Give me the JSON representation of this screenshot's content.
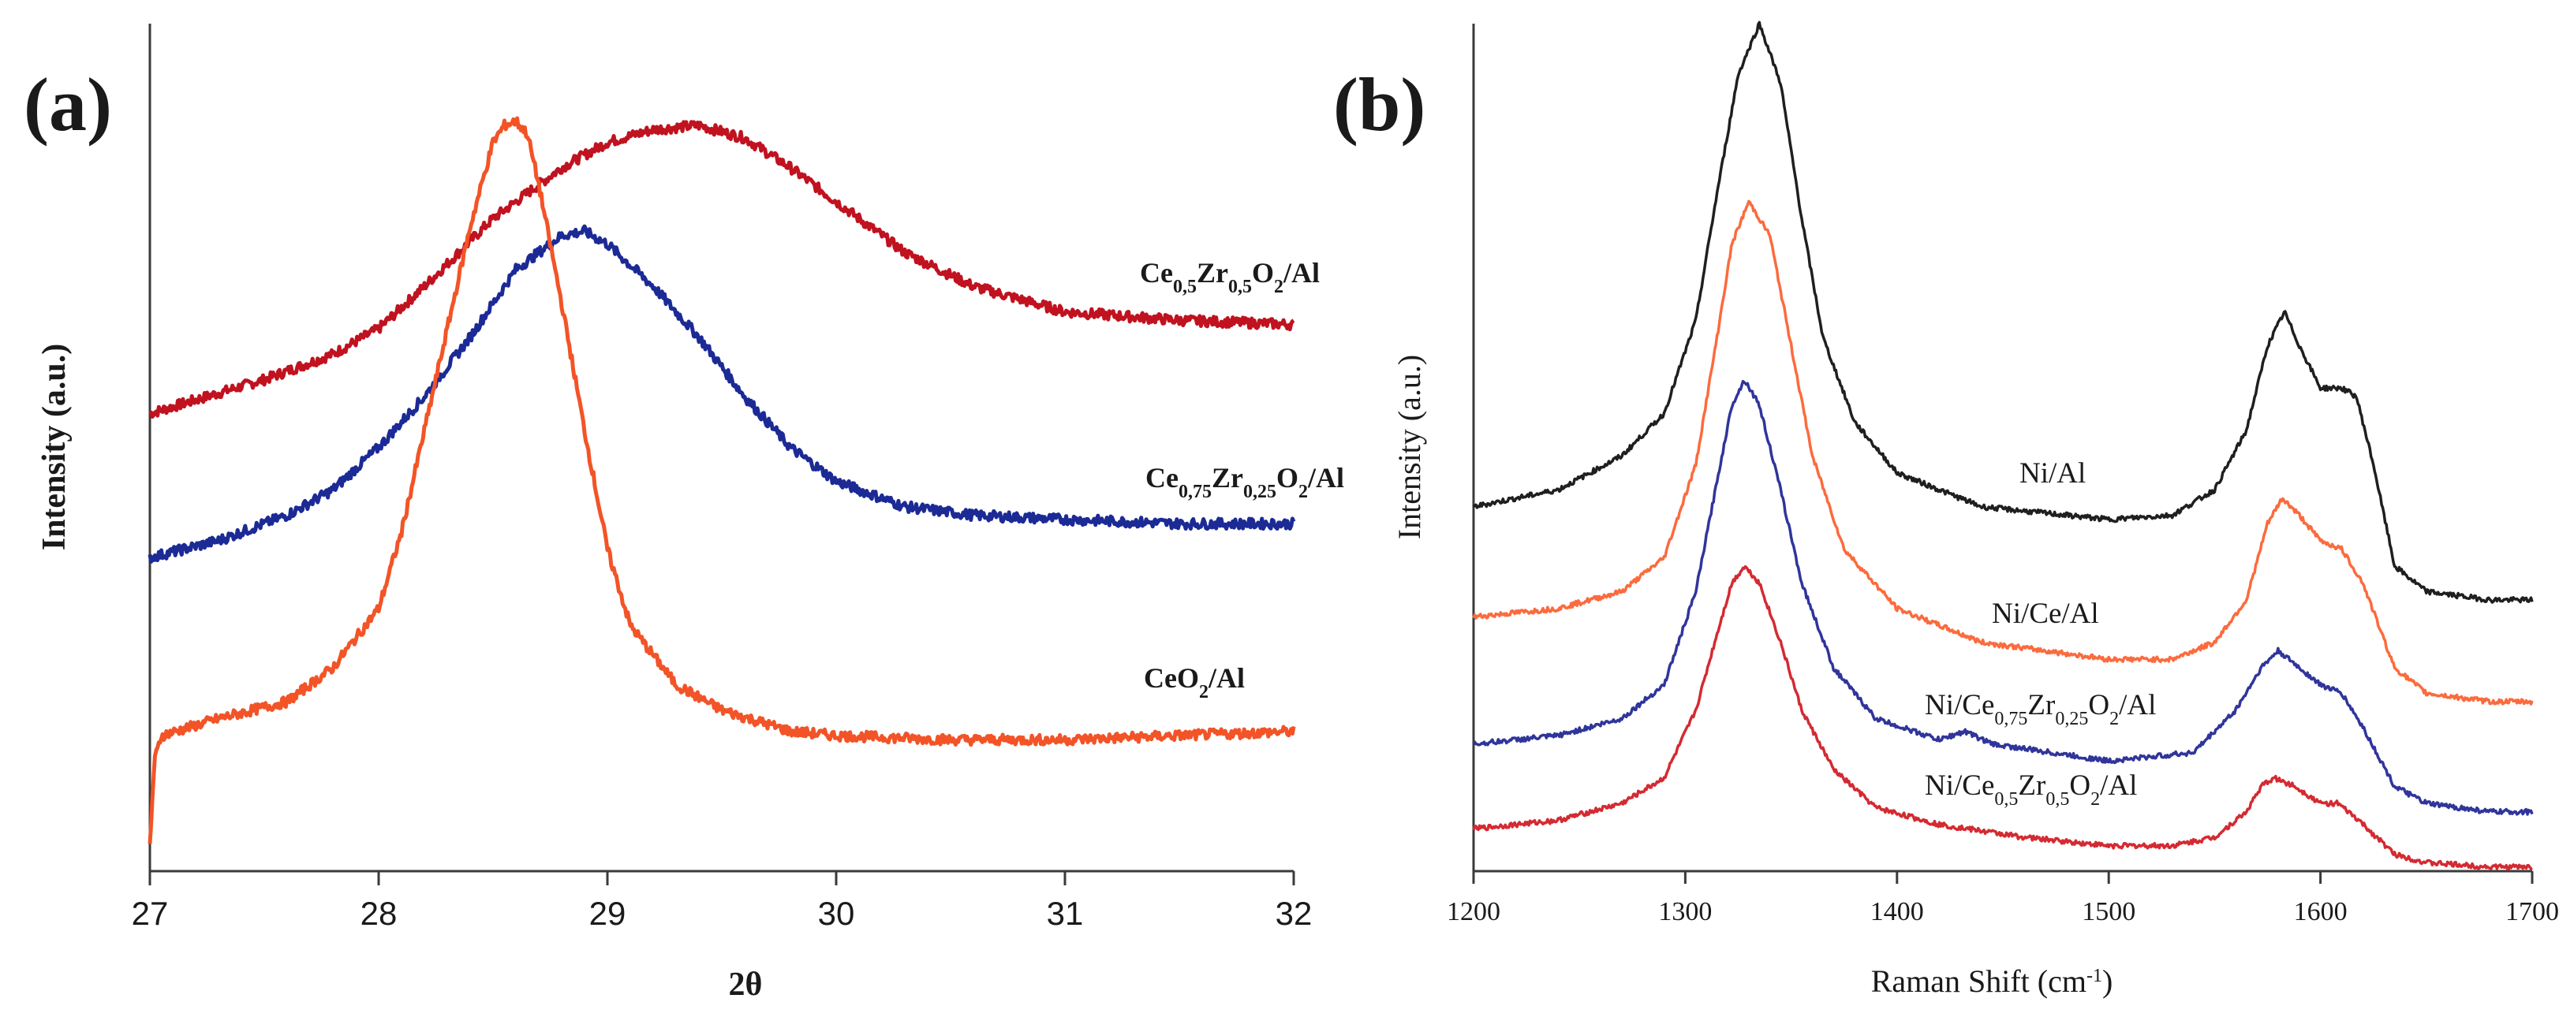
{
  "figure": {
    "panel_a_letter": "(a)",
    "panel_b_letter": "(b)"
  },
  "chart_data": [
    {
      "type": "line",
      "panel": "(a)",
      "title": "",
      "xlabel": "2θ",
      "ylabel": "Intensity (a.u.)",
      "xlim": [
        27,
        32
      ],
      "ylim": [
        0,
        1
      ],
      "xticks": [
        27,
        28,
        29,
        30,
        31,
        32
      ],
      "yticks": [],
      "grid": false,
      "legend": "inline labels at right",
      "series": [
        {
          "name": "Ce0,5Zr0,5O2/Al",
          "color": "#c0121f",
          "label": {
            "base": "Ce",
            "s1": "0,5",
            "m1": "Zr",
            "s2": "0,5",
            "m2": "O",
            "s3": "2",
            "tail": "/Al"
          },
          "x": [
            27.0,
            27.5,
            27.8,
            28.0,
            28.2,
            28.5,
            28.8,
            29.0,
            29.2,
            29.4,
            29.6,
            29.8,
            30.0,
            30.3,
            30.6,
            31.0,
            31.5,
            32.0
          ],
          "y": [
            0.54,
            0.58,
            0.61,
            0.64,
            0.69,
            0.77,
            0.83,
            0.86,
            0.875,
            0.88,
            0.865,
            0.83,
            0.79,
            0.73,
            0.69,
            0.66,
            0.65,
            0.645
          ]
        },
        {
          "name": "Ce0,75Zr0,25O2/Al",
          "color": "#1c2a96",
          "label": {
            "base": "Ce",
            "s1": "0,75",
            "m1": "Zr",
            "s2": "0,25",
            "m2": "O",
            "s3": "2",
            "tail": "/Al"
          },
          "x": [
            27.0,
            27.3,
            27.6,
            27.8,
            28.0,
            28.2,
            28.4,
            28.6,
            28.8,
            28.9,
            29.0,
            29.2,
            29.4,
            29.6,
            29.8,
            30.0,
            30.3,
            30.6,
            31.0,
            31.5,
            32.0
          ],
          "y": [
            0.37,
            0.39,
            0.42,
            0.45,
            0.5,
            0.56,
            0.63,
            0.71,
            0.75,
            0.755,
            0.74,
            0.69,
            0.63,
            0.56,
            0.5,
            0.46,
            0.43,
            0.42,
            0.415,
            0.41,
            0.41
          ]
        },
        {
          "name": "CeO2/Al",
          "color": "#f25427",
          "label": {
            "base": "CeO",
            "s1": "2",
            "tail": "/Al"
          },
          "x": [
            27.0,
            27.02,
            27.05,
            27.3,
            27.6,
            27.8,
            28.0,
            28.1,
            28.2,
            28.3,
            28.4,
            28.5,
            28.55,
            28.6,
            28.65,
            28.7,
            28.8,
            28.9,
            29.0,
            29.1,
            29.3,
            29.5,
            29.8,
            30.0,
            30.5,
            31.0,
            31.5,
            32.0
          ],
          "y": [
            0.03,
            0.13,
            0.16,
            0.18,
            0.2,
            0.24,
            0.31,
            0.4,
            0.52,
            0.64,
            0.76,
            0.86,
            0.88,
            0.885,
            0.87,
            0.81,
            0.67,
            0.52,
            0.38,
            0.29,
            0.22,
            0.19,
            0.165,
            0.16,
            0.155,
            0.155,
            0.16,
            0.165
          ]
        }
      ]
    },
    {
      "type": "line",
      "panel": "(b)",
      "title": "",
      "xlabel": "Raman Shift (cm-1)",
      "xlabel_text": "Raman Shift (cm",
      "xlabel_sup": "-1",
      "xlabel_end": ")",
      "ylabel": "Intensity (a.u.)",
      "xlim": [
        1200,
        1700
      ],
      "ylim": [
        0,
        1
      ],
      "xticks": [
        1200,
        1300,
        1400,
        1500,
        1600,
        1700
      ],
      "yticks": [],
      "grid": false,
      "legend": "inline labels",
      "series": [
        {
          "name": "Ni/Al",
          "color": "#1f1f1f",
          "label": {
            "base": "Ni/Al"
          },
          "x": [
            1200,
            1240,
            1270,
            1290,
            1305,
            1315,
            1325,
            1335,
            1345,
            1355,
            1365,
            1380,
            1400,
            1440,
            1500,
            1530,
            1550,
            1565,
            1575,
            1583,
            1590,
            1600,
            1610,
            1617,
            1625,
            1635,
            1650,
            1680,
            1700
          ],
          "y": [
            0.43,
            0.45,
            0.49,
            0.54,
            0.65,
            0.8,
            0.94,
            1.0,
            0.93,
            0.77,
            0.63,
            0.53,
            0.47,
            0.43,
            0.415,
            0.42,
            0.45,
            0.52,
            0.62,
            0.66,
            0.62,
            0.57,
            0.57,
            0.56,
            0.48,
            0.36,
            0.33,
            0.32,
            0.32
          ]
        },
        {
          "name": "Ni/Ce/Al",
          "color": "#fb6b3d",
          "label": {
            "base": "Ni/Ce/Al"
          },
          "x": [
            1200,
            1240,
            1270,
            1290,
            1305,
            1315,
            1322,
            1330,
            1340,
            1350,
            1360,
            1375,
            1400,
            1440,
            1500,
            1530,
            1550,
            1565,
            1575,
            1582,
            1590,
            1600,
            1610,
            1620,
            1635,
            1650,
            1680,
            1700
          ],
          "y": [
            0.3,
            0.31,
            0.33,
            0.37,
            0.48,
            0.63,
            0.74,
            0.79,
            0.75,
            0.62,
            0.49,
            0.38,
            0.31,
            0.27,
            0.25,
            0.25,
            0.27,
            0.32,
            0.41,
            0.44,
            0.42,
            0.39,
            0.38,
            0.34,
            0.24,
            0.21,
            0.2,
            0.2
          ]
        },
        {
          "name": "Ni/Ce0,75Zr0,25O2/Al",
          "color": "#30359b",
          "label": {
            "base": "Ni/Ce",
            "s1": "0,75",
            "m1": "Zr",
            "s2": "0,25",
            "m2": "O",
            "s3": "2",
            "tail": "/Al"
          },
          "x": [
            1200,
            1240,
            1270,
            1290,
            1305,
            1315,
            1322,
            1328,
            1335,
            1345,
            1355,
            1370,
            1390,
            1420,
            1432,
            1445,
            1500,
            1540,
            1560,
            1572,
            1580,
            1590,
            1600,
            1610,
            1620,
            1635,
            1650,
            1680,
            1700
          ],
          "y": [
            0.15,
            0.16,
            0.18,
            0.22,
            0.33,
            0.46,
            0.55,
            0.58,
            0.55,
            0.45,
            0.34,
            0.24,
            0.18,
            0.155,
            0.165,
            0.15,
            0.13,
            0.14,
            0.19,
            0.24,
            0.26,
            0.24,
            0.22,
            0.21,
            0.17,
            0.1,
            0.08,
            0.07,
            0.07
          ]
        },
        {
          "name": "Ni/Ce0,5Zr0,5O2/Al",
          "color": "#d42a32",
          "label": {
            "base": "Ni/Ce",
            "s1": "0,5",
            "m1": "Zr",
            "s2": "0,5",
            "m2": "O",
            "s3": "2",
            "tail": "/Al"
          },
          "x": [
            1200,
            1240,
            1270,
            1290,
            1305,
            1315,
            1322,
            1328,
            1335,
            1345,
            1355,
            1370,
            1390,
            1420,
            1460,
            1500,
            1530,
            1550,
            1565,
            1572,
            1578,
            1588,
            1600,
            1608,
            1618,
            1635,
            1650,
            1680,
            1700
          ],
          "y": [
            0.05,
            0.06,
            0.08,
            0.11,
            0.19,
            0.28,
            0.34,
            0.36,
            0.34,
            0.27,
            0.19,
            0.12,
            0.075,
            0.055,
            0.04,
            0.03,
            0.03,
            0.04,
            0.07,
            0.1,
            0.11,
            0.1,
            0.08,
            0.08,
            0.06,
            0.02,
            0.01,
            0.005,
            0.005
          ]
        }
      ]
    }
  ]
}
